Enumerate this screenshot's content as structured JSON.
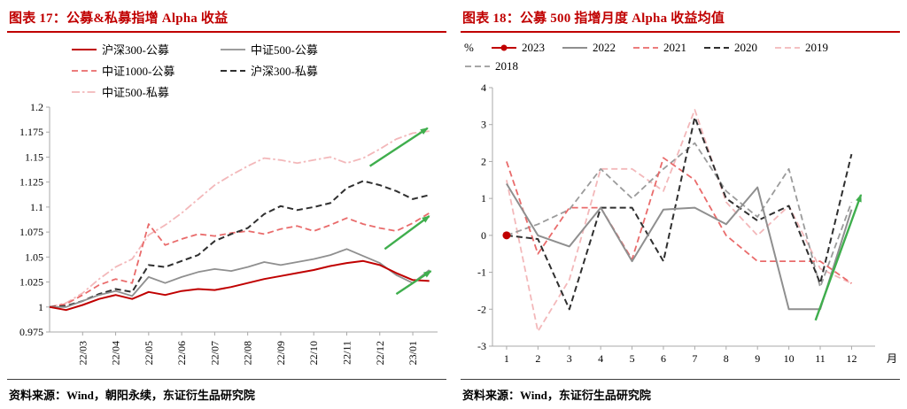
{
  "colors": {
    "title_red": "#c00000",
    "arrow_green": "#3fae4d",
    "axis_gray": "#a9a9a9"
  },
  "panels": [
    {
      "title": "图表 17：公募&私募指增 Alpha 收益",
      "source": "资料来源：Wind，朝阳永续，东证衍生品研究院"
    },
    {
      "title": "图表 18：公募 500 指增月度 Alpha 收益均值",
      "source": "资料来源：Wind，东证衍生品研究院"
    }
  ],
  "chart_data": [
    {
      "type": "line",
      "title": "公募&私募指增 Alpha 收益",
      "xlabel": "",
      "ylabel": "",
      "xlim": [
        0,
        23.5
      ],
      "ylim": [
        0.975,
        1.2
      ],
      "yticks": [
        0.975,
        1,
        1.025,
        1.05,
        1.075,
        1.1,
        1.125,
        1.15,
        1.175,
        1.2
      ],
      "x_start": 0,
      "x_step": 1,
      "x_ticks": [
        {
          "label": "22/03",
          "x": 2
        },
        {
          "label": "22/04",
          "x": 4
        },
        {
          "label": "22/05",
          "x": 6
        },
        {
          "label": "22/06",
          "x": 8
        },
        {
          "label": "22/07",
          "x": 10
        },
        {
          "label": "22/08",
          "x": 12
        },
        {
          "label": "22/09",
          "x": 14
        },
        {
          "label": "22/10",
          "x": 16
        },
        {
          "label": "22/11",
          "x": 18
        },
        {
          "label": "22/12",
          "x": 20
        },
        {
          "label": "23/01",
          "x": 22
        }
      ],
      "series": [
        {
          "name": "沪深300-公募",
          "color": "#c00000",
          "dash": "solid",
          "width": 2,
          "z": 5,
          "values": [
            1.0,
            0.997,
            1.002,
            1.008,
            1.012,
            1.008,
            1.015,
            1.012,
            1.016,
            1.018,
            1.017,
            1.02,
            1.024,
            1.028,
            1.031,
            1.034,
            1.037,
            1.041,
            1.044,
            1.046,
            1.042,
            1.034,
            1.027,
            1.026
          ]
        },
        {
          "name": "中证500-公募",
          "color": "#8f8f8f",
          "dash": "solid",
          "width": 1.8,
          "z": 4,
          "values": [
            1.0,
            1.0,
            1.006,
            1.012,
            1.016,
            1.011,
            1.03,
            1.024,
            1.03,
            1.035,
            1.038,
            1.036,
            1.04,
            1.045,
            1.042,
            1.045,
            1.048,
            1.052,
            1.058,
            1.051,
            1.044,
            1.032,
            1.024,
            1.037
          ]
        },
        {
          "name": "中证1000-公募",
          "color": "#e96b6b",
          "dash": "dashed",
          "width": 1.8,
          "z": 2,
          "values": [
            1.0,
            1.003,
            1.012,
            1.022,
            1.028,
            1.024,
            1.083,
            1.062,
            1.068,
            1.073,
            1.071,
            1.074,
            1.076,
            1.073,
            1.078,
            1.081,
            1.076,
            1.082,
            1.089,
            1.083,
            1.079,
            1.076,
            1.084,
            1.094
          ]
        },
        {
          "name": "沪深300-私募",
          "color": "#2f2f2f",
          "dash": "dashed",
          "width": 2,
          "z": 3,
          "values": [
            1.0,
            1.001,
            1.006,
            1.013,
            1.018,
            1.015,
            1.042,
            1.04,
            1.046,
            1.052,
            1.066,
            1.073,
            1.079,
            1.093,
            1.101,
            1.097,
            1.1,
            1.104,
            1.119,
            1.126,
            1.122,
            1.116,
            1.108,
            1.112
          ]
        },
        {
          "name": "中证500-私募",
          "color": "#f3b8ba",
          "dash": "dashdot",
          "width": 1.8,
          "z": 1,
          "values": [
            1.0,
            1.004,
            1.014,
            1.028,
            1.04,
            1.048,
            1.072,
            1.082,
            1.094,
            1.108,
            1.122,
            1.132,
            1.141,
            1.149,
            1.147,
            1.144,
            1.147,
            1.15,
            1.144,
            1.149,
            1.158,
            1.168,
            1.174,
            1.176
          ]
        }
      ],
      "annotations": [
        {
          "name": "up-arrow",
          "x1": 19.4,
          "y1": 1.141,
          "x2": 22.9,
          "y2": 1.179,
          "color": "#3fae4d"
        },
        {
          "name": "up-arrow",
          "x1": 20.3,
          "y1": 1.058,
          "x2": 23.0,
          "y2": 1.091,
          "color": "#3fae4d"
        },
        {
          "name": "up-arrow",
          "x1": 21.0,
          "y1": 1.013,
          "x2": 23.1,
          "y2": 1.036,
          "color": "#3fae4d"
        }
      ]
    },
    {
      "type": "line",
      "title": "公募 500 指增月度 Alpha 收益均值",
      "xlabel": "月",
      "ylabel": "%",
      "x_suffix": "月",
      "xlim": [
        0.55,
        12.75
      ],
      "ylim": [
        -3,
        4
      ],
      "yticks": [
        -3,
        -2,
        -1,
        0,
        1,
        2,
        3,
        4
      ],
      "x_start": 1,
      "x_step": 1,
      "x_ticks": [
        {
          "label": "1",
          "x": 1
        },
        {
          "label": "2",
          "x": 2
        },
        {
          "label": "3",
          "x": 3
        },
        {
          "label": "4",
          "x": 4
        },
        {
          "label": "5",
          "x": 5
        },
        {
          "label": "6",
          "x": 6
        },
        {
          "label": "7",
          "x": 7
        },
        {
          "label": "8",
          "x": 8
        },
        {
          "label": "9",
          "x": 9
        },
        {
          "label": "10",
          "x": 10
        },
        {
          "label": "11",
          "x": 11
        },
        {
          "label": "12",
          "x": 12
        }
      ],
      "series": [
        {
          "name": "2023",
          "color": "#c00000",
          "dash": "solid",
          "width": 2,
          "marker": true,
          "z": 6,
          "values": [
            0.0
          ]
        },
        {
          "name": "2022",
          "color": "#8f8f8f",
          "dash": "solid",
          "width": 2,
          "z": 5,
          "values": [
            1.4,
            0.0,
            -0.3,
            0.75,
            -0.7,
            0.7,
            0.75,
            0.3,
            1.3,
            -2.0,
            -2.0,
            0.7
          ]
        },
        {
          "name": "2021",
          "color": "#e96b6b",
          "dash": "dashed",
          "width": 1.8,
          "z": 3,
          "values": [
            2.0,
            -0.5,
            0.75,
            0.75,
            -0.65,
            2.1,
            1.5,
            0.0,
            -0.7,
            -0.7,
            -0.7,
            -1.3
          ]
        },
        {
          "name": "2020",
          "color": "#2f2f2f",
          "dash": "dashed",
          "width": 2,
          "z": 4,
          "values": [
            0.0,
            -0.1,
            -2.0,
            0.75,
            0.75,
            -0.7,
            3.2,
            1.0,
            0.4,
            0.8,
            -1.3,
            2.2
          ]
        },
        {
          "name": "2019",
          "color": "#f3b8ba",
          "dash": "dashed",
          "width": 1.8,
          "z": 1,
          "values": [
            1.5,
            -2.6,
            -1.2,
            1.8,
            1.8,
            1.2,
            3.4,
            0.9,
            0.0,
            0.8,
            -0.9,
            -1.3
          ]
        },
        {
          "name": "2018",
          "color": "#9b9b9b",
          "dash": "dashed",
          "width": 1.8,
          "z": 2,
          "values": [
            0.0,
            0.3,
            0.7,
            1.8,
            1.0,
            1.8,
            2.5,
            1.2,
            0.5,
            1.8,
            -1.4,
            0.9
          ]
        }
      ],
      "annotations": [
        {
          "name": "up-arrow",
          "x1": 10.85,
          "y1": -2.3,
          "x2": 12.3,
          "y2": 1.1,
          "color": "#3fae4d"
        }
      ]
    }
  ]
}
